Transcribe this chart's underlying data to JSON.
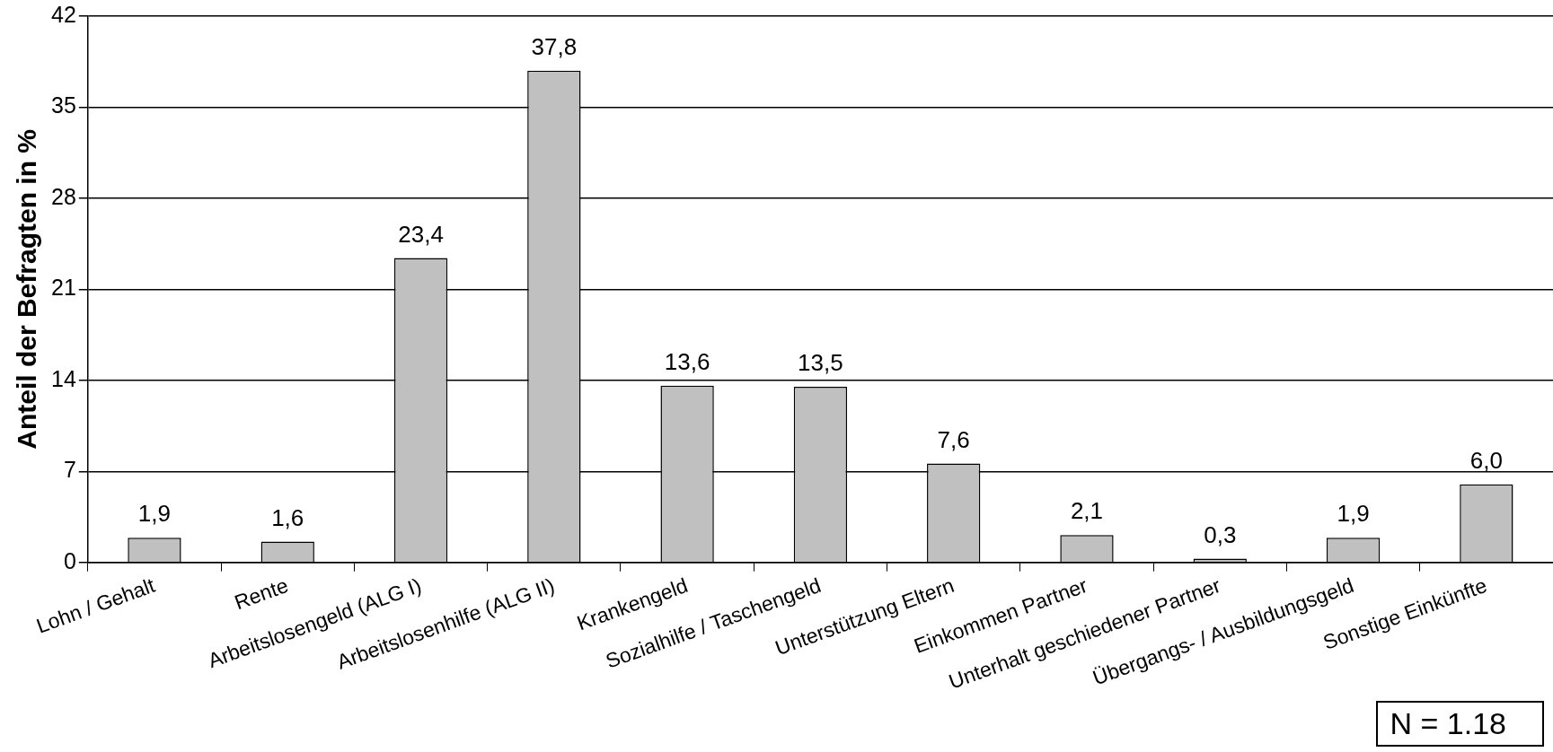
{
  "chart_data": {
    "type": "bar",
    "ylabel": "Anteil der Befragten in %",
    "categories": [
      "Lohn / Gehalt",
      "Rente",
      "Arbeitslosengeld (ALG I)",
      "Arbeitslosenhilfe (ALG II)",
      "Krankengeld",
      "Sozialhilfe / Taschengeld",
      "Unterstützung Eltern",
      "Einkommen Partner",
      "Unterhalt geschiedener Partner",
      "Übergangs- / Ausbildungsgeld",
      "Sonstige Einkünfte"
    ],
    "values": [
      1.9,
      1.6,
      23.4,
      37.8,
      13.6,
      13.5,
      7.6,
      2.1,
      0.3,
      1.9,
      6.0
    ],
    "value_labels": [
      "1,9",
      "1,6",
      "23,4",
      "37,8",
      "13,6",
      "13,5",
      "7,6",
      "2,1",
      "0,3",
      "1,9",
      "6,0"
    ],
    "color": "#c0c0c0",
    "ylim": [
      0,
      42
    ],
    "yticks": [
      0,
      7,
      14,
      21,
      28,
      35,
      42
    ],
    "grid": "y",
    "legend": false,
    "annotations": [
      "N = 1.18"
    ]
  }
}
